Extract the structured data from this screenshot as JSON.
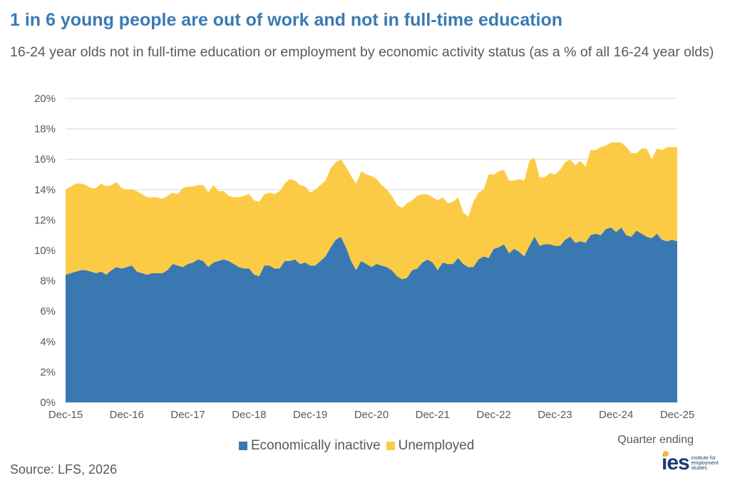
{
  "title": "1 in 6 young people are out of work and not in full-time education",
  "subtitle": "16-24 year olds not in full-time education or employment by economic activity status (as a % of all 16-24 year olds)",
  "x_axis_note": "Quarter ending",
  "source": "Source: LFS, 2026",
  "logo": {
    "mark": "ies",
    "text": "institute for employment studies"
  },
  "colors": {
    "inactive": "#3a78b2",
    "unemployed": "#fccb46",
    "grid": "#d9d9d9",
    "text": "#595959"
  },
  "chart_data": {
    "type": "area",
    "stacked": true,
    "x_start": "Dec-15",
    "x_end": "Dec-25",
    "ylim": [
      0,
      20
    ],
    "y_ticks": [
      "0%",
      "2%",
      "4%",
      "6%",
      "8%",
      "10%",
      "12%",
      "14%",
      "16%",
      "18%",
      "20%"
    ],
    "x_ticks": [
      "Dec-15",
      "Dec-16",
      "Dec-17",
      "Dec-18",
      "Dec-19",
      "Dec-20",
      "Dec-21",
      "Dec-22",
      "Dec-23",
      "Dec-24",
      "Dec-25"
    ],
    "grid": true,
    "legend_position": "bottom",
    "series": [
      {
        "name": "Economically inactive",
        "values": [
          8.4,
          8.5,
          8.6,
          8.7,
          8.7,
          8.6,
          8.5,
          8.6,
          8.4,
          8.7,
          8.9,
          8.8,
          8.9,
          9.0,
          8.6,
          8.5,
          8.4,
          8.5,
          8.5,
          8.5,
          8.7,
          9.1,
          9.0,
          8.9,
          9.1,
          9.2,
          9.4,
          9.3,
          8.9,
          9.2,
          9.3,
          9.4,
          9.3,
          9.1,
          8.9,
          8.8,
          8.8,
          8.4,
          8.3,
          9.0,
          9.0,
          8.8,
          8.8,
          9.3,
          9.3,
          9.4,
          9.1,
          9.2,
          9.0,
          9.0,
          9.3,
          9.6,
          10.2,
          10.7,
          10.9,
          10.2,
          9.3,
          8.7,
          9.3,
          9.1,
          8.9,
          9.1,
          9.0,
          8.9,
          8.7,
          8.3,
          8.1,
          8.2,
          8.7,
          8.8,
          9.2,
          9.4,
          9.2,
          8.7,
          9.2,
          9.1,
          9.1,
          9.5,
          9.1,
          8.9,
          8.9,
          9.4,
          9.6,
          9.5,
          10.1,
          10.2,
          10.4,
          9.8,
          10.1,
          9.9,
          9.6,
          10.3,
          10.9,
          10.3,
          10.4,
          10.4,
          10.3,
          10.3,
          10.7,
          10.9,
          10.5,
          10.6,
          10.5,
          11.0,
          11.1,
          11.0,
          11.4,
          11.5,
          11.2,
          11.5,
          11.0,
          10.9,
          11.3,
          11.1,
          10.9,
          10.8,
          11.1,
          10.7,
          10.6,
          10.7,
          10.6
        ]
      },
      {
        "name": "Unemployed",
        "values": [
          5.6,
          5.7,
          5.8,
          5.7,
          5.6,
          5.5,
          5.6,
          5.8,
          5.8,
          5.6,
          5.6,
          5.3,
          5.1,
          5.0,
          5.3,
          5.2,
          5.1,
          5.0,
          5.0,
          4.9,
          4.9,
          4.7,
          4.7,
          5.2,
          5.1,
          5.0,
          4.9,
          5.0,
          4.9,
          5.1,
          4.6,
          4.5,
          4.3,
          4.4,
          4.6,
          4.8,
          4.9,
          4.9,
          4.9,
          4.7,
          4.8,
          4.9,
          5.1,
          5.1,
          5.4,
          5.2,
          5.2,
          5.0,
          4.8,
          5.0,
          5.0,
          5.0,
          5.2,
          5.1,
          5.1,
          5.3,
          5.6,
          5.7,
          5.9,
          5.9,
          6.0,
          5.6,
          5.3,
          5.1,
          4.9,
          4.7,
          4.7,
          4.9,
          4.6,
          4.8,
          4.5,
          4.3,
          4.3,
          4.6,
          4.3,
          4.0,
          4.1,
          4.0,
          3.4,
          3.3,
          4.3,
          4.4,
          4.4,
          5.5,
          4.9,
          5.0,
          4.9,
          4.8,
          4.5,
          4.8,
          5.0,
          5.6,
          5.2,
          4.5,
          4.4,
          4.7,
          4.7,
          5.0,
          5.1,
          5.1,
          5.1,
          5.3,
          5.0,
          5.6,
          5.5,
          5.8,
          5.5,
          5.6,
          5.9,
          5.6,
          5.8,
          5.5,
          5.1,
          5.6,
          5.8,
          5.2,
          5.6,
          5.9,
          6.2,
          6.1,
          6.2
        ]
      }
    ]
  }
}
